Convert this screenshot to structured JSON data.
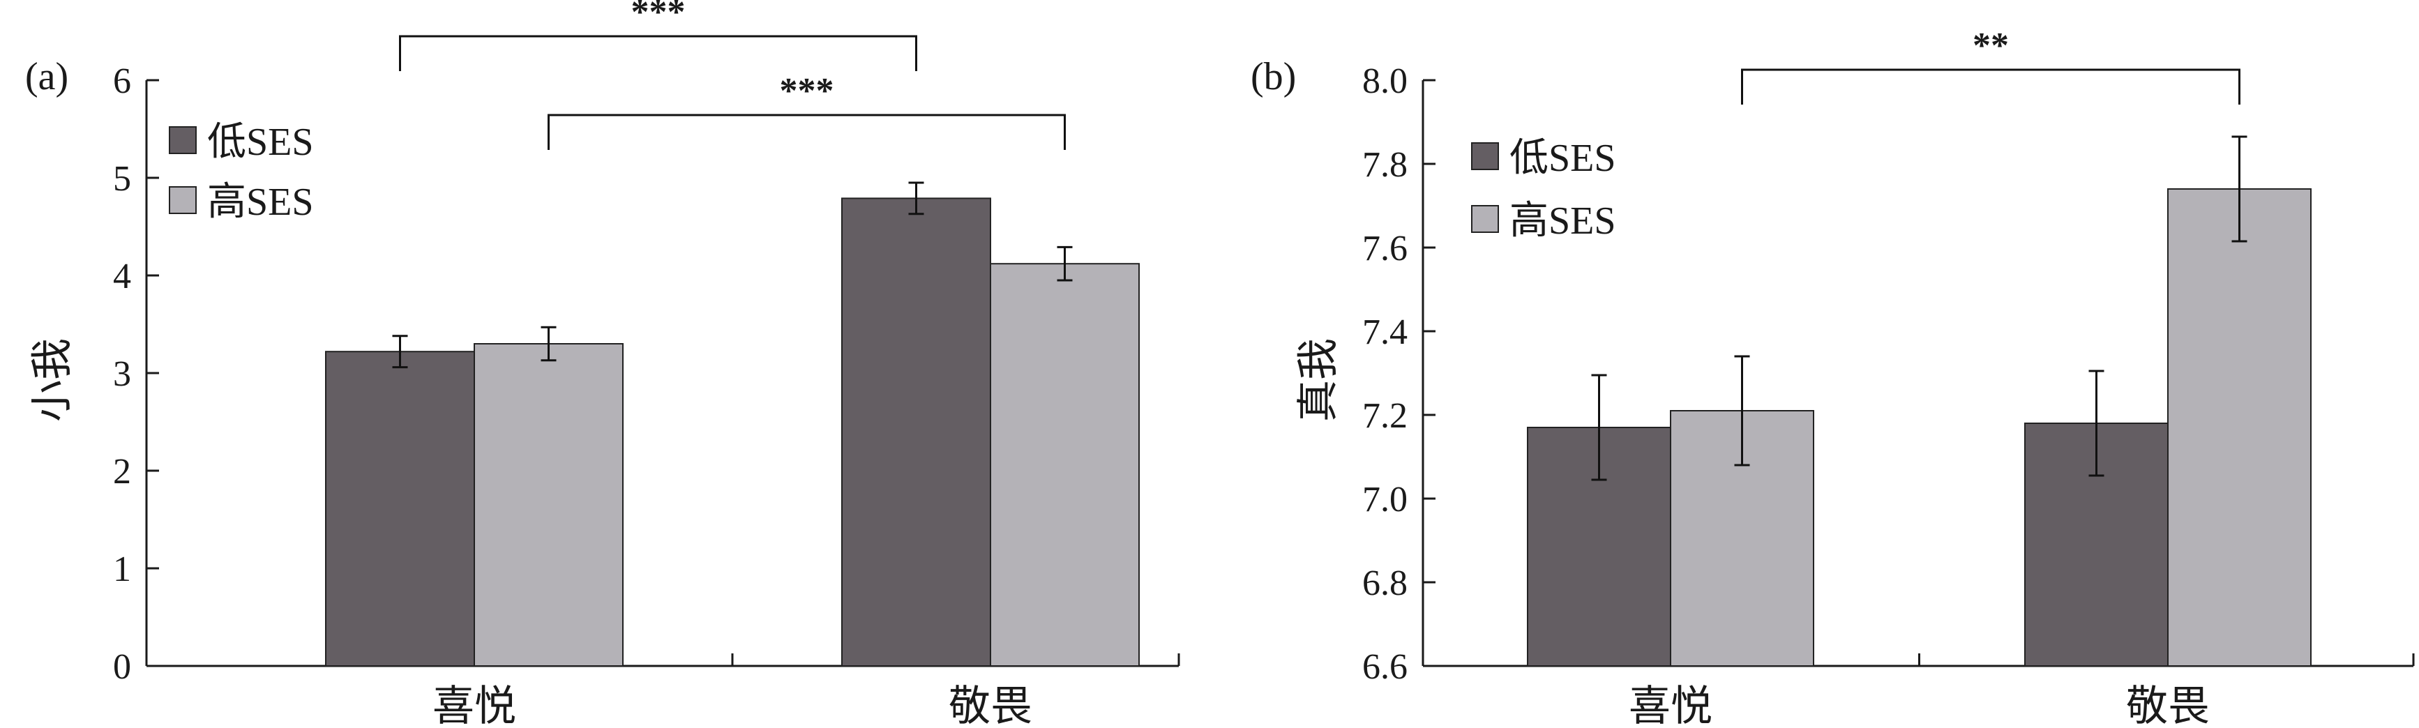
{
  "colors": {
    "low_ses": "#645e63",
    "high_ses": "#b4b2b7",
    "axis": "#1a1a1a"
  },
  "chart_data": [
    {
      "type": "bar",
      "panel_label": "(a)",
      "categories": [
        "喜悦",
        "敬畏"
      ],
      "series": [
        {
          "name": "低SES",
          "values": [
            3.22,
            4.79
          ],
          "errors": [
            0.16,
            0.16
          ]
        },
        {
          "name": "高SES",
          "values": [
            3.3,
            4.12
          ],
          "errors": [
            0.17,
            0.17
          ]
        }
      ],
      "ylabel": "小我",
      "xlabel": "",
      "ylim": [
        0,
        6
      ],
      "yticks": [
        "0",
        "1",
        "2",
        "3",
        "4",
        "5",
        "6"
      ],
      "legend_position": "top-left",
      "grid": false,
      "significance": [
        {
          "label": "***",
          "from": "喜悦 低SES",
          "to": "敬畏 低SES"
        },
        {
          "label": "***",
          "from": "喜悦 高SES",
          "to": "敬畏 高SES"
        }
      ]
    },
    {
      "type": "bar",
      "panel_label": "(b)",
      "categories": [
        "喜悦",
        "敬畏"
      ],
      "series": [
        {
          "name": "低SES",
          "values": [
            7.17,
            7.18
          ],
          "errors": [
            0.125,
            0.125
          ]
        },
        {
          "name": "高SES",
          "values": [
            7.21,
            7.74
          ],
          "errors": [
            0.13,
            0.125
          ]
        }
      ],
      "ylabel": "真我",
      "xlabel": "",
      "ylim": [
        6.6,
        8.0
      ],
      "yticks": [
        "6.6",
        "6.8",
        "7.0",
        "7.2",
        "7.4",
        "7.6",
        "7.8",
        "8.0"
      ],
      "legend_position": "top-left",
      "grid": false,
      "significance": [
        {
          "label": "**",
          "from": "喜悦 高SES",
          "to": "敬畏 高SES"
        }
      ]
    }
  ]
}
